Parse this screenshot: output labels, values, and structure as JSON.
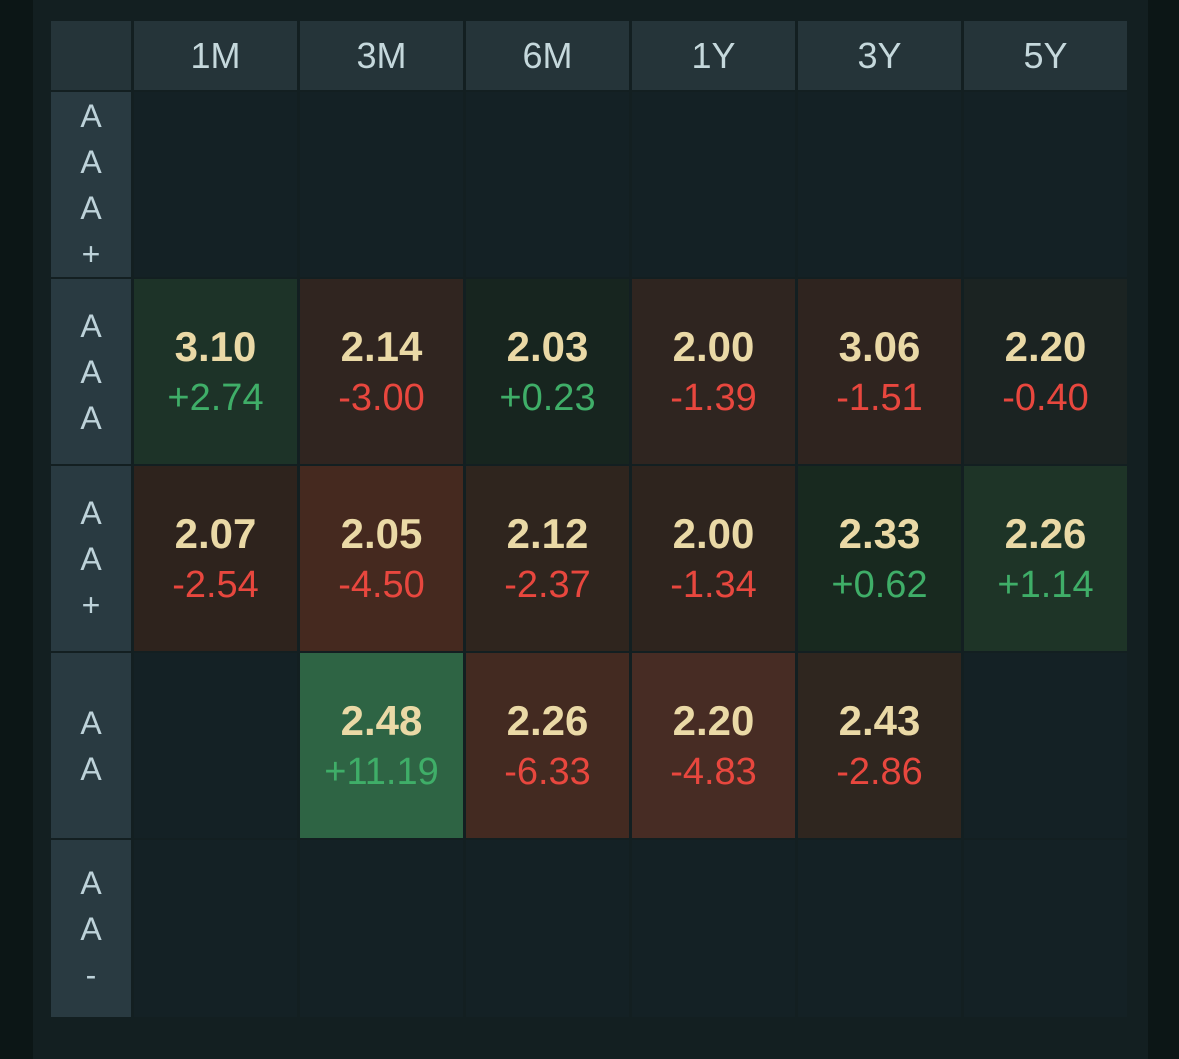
{
  "palette": {
    "page_bg": "#0c1616",
    "container_bg": "#131f21",
    "header_bg": "#253439",
    "header_text": "#c5d8dc",
    "label_bg": "#293a41",
    "label_text": "#bdd2d9",
    "empty_cell_bg": "#142125",
    "value_text": "#ead9a6",
    "up_color": "#3fae68",
    "down_color": "#e8473e"
  },
  "chart_data": {
    "type": "heatmap",
    "x_categories": [
      "1M",
      "3M",
      "6M",
      "1Y",
      "3Y",
      "5Y"
    ],
    "y_categories": [
      "AAA+",
      "AAA",
      "AA+",
      "AA",
      "AA-"
    ],
    "legend": "each populated tile shows yield value (top) and change (bottom); tile background encodes change direction/magnitude (green up, red down)",
    "rows": [
      {
        "label": "AAA+",
        "cells": [
          null,
          null,
          null,
          null,
          null,
          null
        ]
      },
      {
        "label": "AAA",
        "cells": [
          {
            "value": "3.10",
            "change": "+2.74",
            "bg": "#1d3328"
          },
          {
            "value": "2.14",
            "change": "-3.00",
            "bg": "#302520"
          },
          {
            "value": "2.03",
            "change": "+0.23",
            "bg": "#17251f"
          },
          {
            "value": "2.00",
            "change": "-1.39",
            "bg": "#2f2520"
          },
          {
            "value": "3.06",
            "change": "-1.51",
            "bg": "#2f241f"
          },
          {
            "value": "2.20",
            "change": "-0.40",
            "bg": "#1b2322"
          }
        ]
      },
      {
        "label": "AA+",
        "cells": [
          {
            "value": "2.07",
            "change": "-2.54",
            "bg": "#2e231d"
          },
          {
            "value": "2.05",
            "change": "-4.50",
            "bg": "#45291f"
          },
          {
            "value": "2.12",
            "change": "-2.37",
            "bg": "#2f251e"
          },
          {
            "value": "2.00",
            "change": "-1.34",
            "bg": "#2e241e"
          },
          {
            "value": "2.33",
            "change": "+0.62",
            "bg": "#18291f"
          },
          {
            "value": "2.26",
            "change": "+1.14",
            "bg": "#1e3427"
          }
        ]
      },
      {
        "label": "AA",
        "cells": [
          null,
          {
            "value": "2.48",
            "change": "+11.19",
            "bg": "#2e6444"
          },
          {
            "value": "2.26",
            "change": "-6.33",
            "bg": "#432a21"
          },
          {
            "value": "2.20",
            "change": "-4.83",
            "bg": "#472c24"
          },
          {
            "value": "2.43",
            "change": "-2.86",
            "bg": "#2f261f"
          },
          null
        ]
      },
      {
        "label": "AA-",
        "cells": [
          null,
          null,
          null,
          null,
          null,
          null
        ]
      }
    ]
  }
}
